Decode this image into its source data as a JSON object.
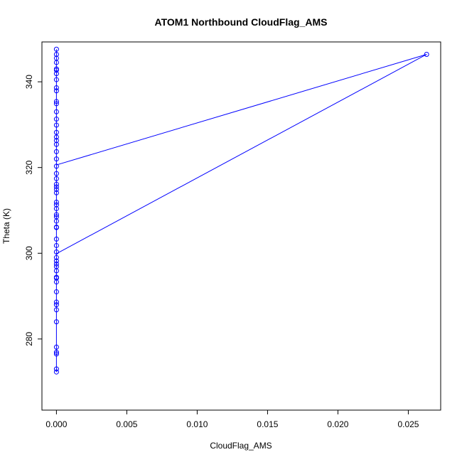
{
  "chart_data": {
    "type": "scatter",
    "title": "ATOM1 Northbound CloudFlag_AMS",
    "xlabel": "CloudFlag_AMS",
    "ylabel": "Theta (K)",
    "xlim": [
      -0.00103,
      0.0273
    ],
    "ylim": [
      263.4,
      349.3
    ],
    "x_ticks": [
      0.0,
      0.005,
      0.01,
      0.015,
      0.02,
      0.025
    ],
    "x_tick_labels": [
      "0.000",
      "0.005",
      "0.010",
      "0.015",
      "0.020",
      "0.025"
    ],
    "y_ticks": [
      280,
      300,
      320,
      340
    ],
    "y_tick_labels": [
      "280",
      "300",
      "320",
      "340"
    ],
    "grid": false,
    "legend": "none",
    "color": "#0000ff",
    "series": [
      {
        "points": [
          [
            0,
            272.3
          ],
          [
            0,
            273.0
          ],
          [
            0,
            276.5
          ],
          [
            0,
            276.9
          ],
          [
            0,
            278.1
          ],
          [
            0,
            284.0
          ],
          [
            0,
            286.8
          ],
          [
            0,
            288.0
          ],
          [
            0,
            288.6
          ],
          [
            0,
            291.0
          ],
          [
            0,
            293.3
          ],
          [
            0,
            294.2
          ],
          [
            0,
            294.4
          ],
          [
            0,
            295.9
          ],
          [
            0,
            296.9
          ],
          [
            0,
            297.5
          ],
          [
            0,
            298.2
          ],
          [
            0,
            299.0
          ],
          [
            0,
            300.3
          ],
          [
            0,
            301.8
          ],
          [
            0,
            303.3
          ],
          [
            0,
            306.0
          ],
          [
            0,
            306.1
          ],
          [
            0,
            307.5
          ],
          [
            0,
            308.5
          ],
          [
            0,
            309.0
          ],
          [
            0,
            310.4
          ],
          [
            0,
            311.3
          ],
          [
            0,
            311.9
          ],
          [
            0,
            314.1
          ],
          [
            0,
            314.9
          ],
          [
            0,
            315.5
          ],
          [
            0,
            316.1
          ],
          [
            0,
            317.4
          ],
          [
            0,
            318.6
          ],
          [
            0,
            320.3
          ],
          [
            0,
            322.0
          ],
          [
            0,
            323.7
          ],
          [
            0,
            325.4
          ],
          [
            0,
            326.3
          ],
          [
            0,
            327.1
          ],
          [
            0,
            328.2
          ],
          [
            0,
            329.9
          ],
          [
            0,
            331.3
          ],
          [
            0,
            333.0
          ],
          [
            0,
            334.9
          ],
          [
            0,
            335.4
          ],
          [
            0,
            337.9
          ],
          [
            0,
            338.6
          ],
          [
            0,
            340.5
          ],
          [
            0,
            341.9
          ],
          [
            0,
            342.7
          ],
          [
            0,
            343.0
          ],
          [
            0,
            344.5
          ],
          [
            0,
            345.5
          ],
          [
            0,
            346.4
          ],
          [
            0,
            347.6
          ],
          [
            0.0263,
            346.4
          ]
        ],
        "lines": [
          [
            [
              0,
              272.3
            ],
            [
              0,
              347.6
            ]
          ],
          [
            [
              0,
              320.6
            ],
            [
              0.0263,
              346.4
            ]
          ],
          [
            [
              0,
              299.9
            ],
            [
              0.0263,
              346.4
            ]
          ]
        ]
      }
    ]
  }
}
